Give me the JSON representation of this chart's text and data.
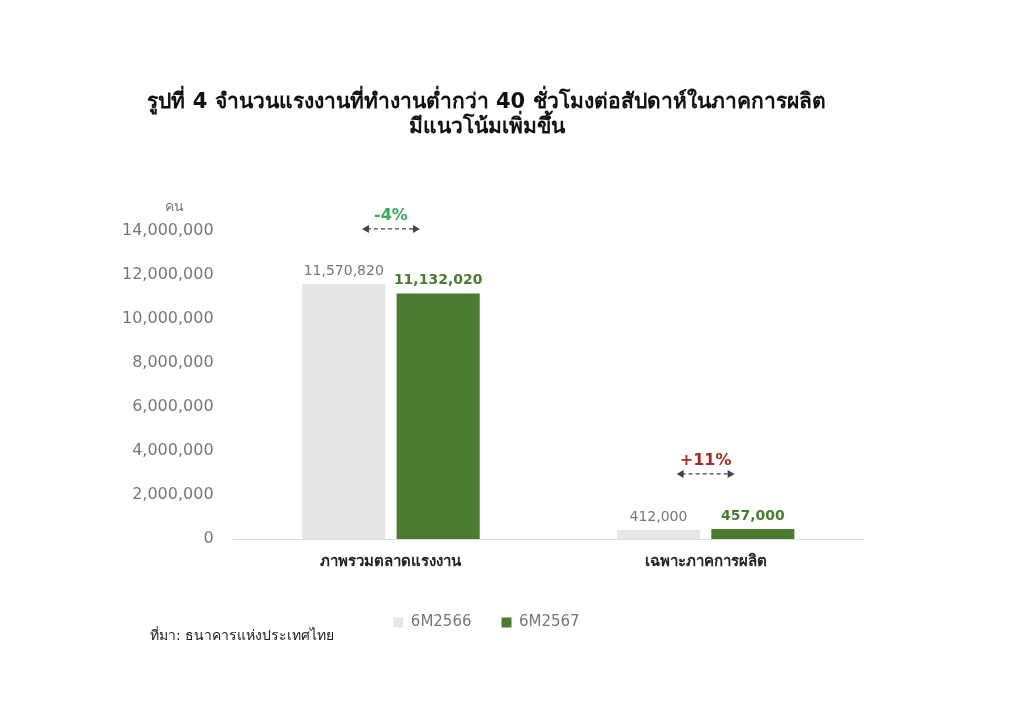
{
  "chart_data": {
    "type": "bar",
    "title": "รูปที่ 4 จำนวนแรงงานที่ทำงานต่ำกว่า 40 ชั่วโมงต่อสัปดาห์ในภาคการผลิต\nมีแนวโน้มเพิ่มขึ้น",
    "ylabel": "คน",
    "categories": [
      "ภาพรวมตลาดแรงงาน",
      "เฉพาะภาคการผลิต"
    ],
    "series": [
      {
        "name": "6M2566",
        "color": "#e6e6e6",
        "values": [
          11570820,
          412000
        ],
        "value_labels": [
          "11,570,820",
          "412,000"
        ]
      },
      {
        "name": "6M2567",
        "color": "#4a7c2f",
        "values": [
          11132020,
          457000
        ],
        "value_labels": [
          "11,132,020",
          "457,000"
        ]
      }
    ],
    "ylim": [
      0,
      14000000
    ],
    "yticks": [
      {
        "value": 0,
        "label": "0"
      },
      {
        "value": 2000000,
        "label": "2,000,000"
      },
      {
        "value": 4000000,
        "label": "4,000,000"
      },
      {
        "value": 6000000,
        "label": "6,000,000"
      },
      {
        "value": 8000000,
        "label": "8,000,000"
      },
      {
        "value": 10000000,
        "label": "10,000,000"
      },
      {
        "value": 12000000,
        "label": "12,000,000"
      },
      {
        "value": 14000000,
        "label": "14,000,000"
      }
    ],
    "grid": false,
    "legend": "bottom",
    "annotations": [
      "-4%",
      "+11%",
      "ที่มา: ธนาคารแห่งประเทศไทย"
    ]
  }
}
